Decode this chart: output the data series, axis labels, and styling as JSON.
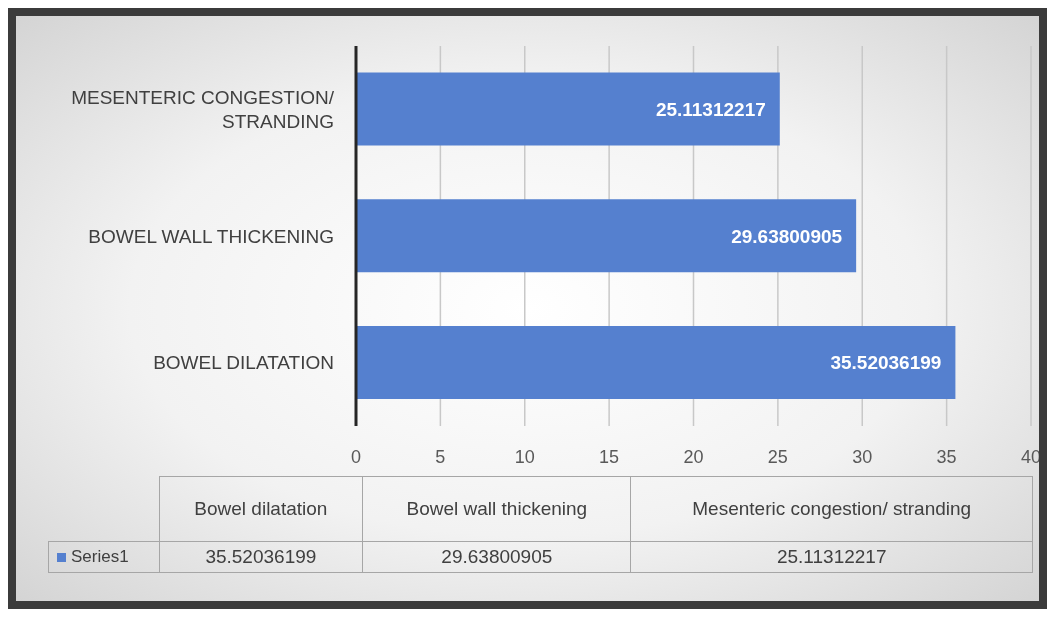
{
  "chart_data": {
    "type": "bar",
    "orientation": "horizontal",
    "categories": [
      "MESENTERIC CONGESTION/ STRANDING",
      "BOWEL WALL THICKENING",
      "BOWEL DILATATION"
    ],
    "annotations": [
      "Bowel dilatation",
      "Bowel wall thickening",
      "Mesenteric congestion/ stranding",
      "35.52036199",
      "29.63800905",
      "25.11312217"
    ],
    "series": [
      {
        "name": "Series1",
        "color": "#5580cf",
        "values": [
          25.11312217,
          29.63800905,
          35.52036199
        ]
      }
    ],
    "xlim": [
      0,
      40
    ],
    "xticks": [
      0,
      5,
      10,
      15,
      20,
      25,
      30,
      35,
      40
    ],
    "grid": "x",
    "data_labels": true,
    "legend": "bottom"
  }
}
